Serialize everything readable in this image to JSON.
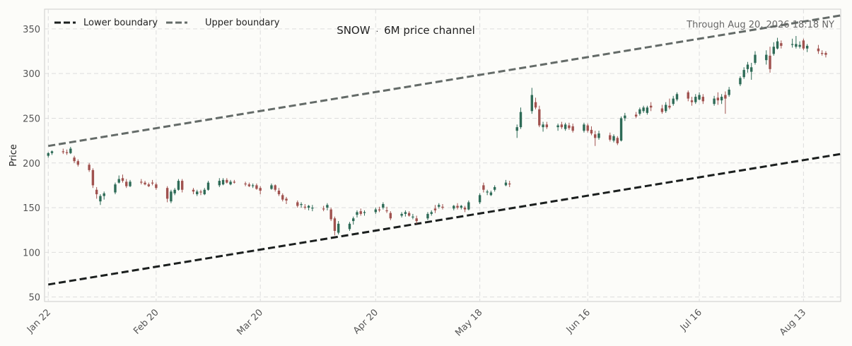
{
  "chart_data": {
    "type": "candlestick",
    "title": "SNOW · 6M price channel",
    "title_parts": {
      "ticker": "SNOW",
      "separator": "·",
      "subtitle": "6M price channel"
    },
    "note": "Through Aug 20, 2026 18:18 NY",
    "ylabel": "Price",
    "xlabel": "",
    "ylim": [
      45,
      372
    ],
    "xlim": [
      "2026-01-21",
      "2026-08-23"
    ],
    "grid": true,
    "legend_placement": "top-left",
    "y_ticks": [
      50,
      100,
      150,
      200,
      250,
      300,
      350
    ],
    "x_ticks": [
      {
        "date": "2026-01-22",
        "label": "Jan 22"
      },
      {
        "date": "2026-02-20",
        "label": "Feb 20"
      },
      {
        "date": "2026-03-20",
        "label": "Mar 20"
      },
      {
        "date": "2026-04-20",
        "label": "Apr 20"
      },
      {
        "date": "2026-05-18",
        "label": "May 18"
      },
      {
        "date": "2026-06-16",
        "label": "Jun 16"
      },
      {
        "date": "2026-07-16",
        "label": "Jul 16"
      },
      {
        "date": "2026-08-13",
        "label": "Aug 13"
      }
    ],
    "series": [
      {
        "name": "Lower boundary",
        "kind": "line",
        "style": "dashed",
        "color": "#1b1f1e",
        "points": [
          {
            "date": "2026-01-22",
            "value": 64
          },
          {
            "date": "2026-08-23",
            "value": 210
          }
        ]
      },
      {
        "name": "Upper boundary",
        "kind": "line",
        "style": "dashed",
        "color": "#646b68",
        "points": [
          {
            "date": "2026-01-22",
            "value": 219
          },
          {
            "date": "2026-08-23",
            "value": 365
          }
        ]
      }
    ],
    "colors": {
      "up": "#2e6b57",
      "down": "#a0524f",
      "background": "#fcfcf9",
      "grid": "#dddddd"
    },
    "candles": [
      [
        "2026-01-22",
        208,
        212,
        206,
        211
      ],
      [
        "2026-01-23",
        211,
        214,
        209,
        213
      ],
      [
        "2026-01-26",
        213,
        216,
        210,
        212
      ],
      [
        "2026-01-27",
        212,
        215,
        209,
        211
      ],
      [
        "2026-01-28",
        211,
        218,
        210,
        216
      ],
      [
        "2026-01-29",
        206,
        208,
        200,
        202
      ],
      [
        "2026-01-30",
        202,
        204,
        196,
        198
      ],
      [
        "2026-02-02",
        198,
        200,
        190,
        192
      ],
      [
        "2026-02-03",
        192,
        194,
        172,
        175
      ],
      [
        "2026-02-04",
        170,
        173,
        160,
        165
      ],
      [
        "2026-02-05",
        157,
        165,
        153,
        163
      ],
      [
        "2026-02-06",
        163,
        168,
        159,
        166
      ],
      [
        "2026-02-09",
        167,
        178,
        165,
        176
      ],
      [
        "2026-02-10",
        178,
        186,
        177,
        182
      ],
      [
        "2026-02-11",
        183,
        187,
        178,
        180
      ],
      [
        "2026-02-12",
        179,
        182,
        172,
        174
      ],
      [
        "2026-02-13",
        174,
        181,
        173,
        179
      ],
      [
        "2026-02-16",
        179,
        182,
        176,
        178
      ],
      [
        "2026-02-17",
        178,
        180,
        175,
        176
      ],
      [
        "2026-02-18",
        176,
        178,
        173,
        174
      ],
      [
        "2026-02-19",
        178,
        181,
        175,
        177
      ],
      [
        "2026-02-20",
        176,
        178,
        170,
        172
      ],
      [
        "2026-02-23",
        172,
        174,
        156,
        160
      ],
      [
        "2026-02-24",
        157,
        170,
        155,
        168
      ],
      [
        "2026-02-25",
        166,
        172,
        164,
        170
      ],
      [
        "2026-02-26",
        170,
        182,
        169,
        180
      ],
      [
        "2026-02-27",
        180,
        182,
        167,
        170
      ],
      [
        "2026-03-02",
        170,
        172,
        165,
        168
      ],
      [
        "2026-03-03",
        165,
        170,
        163,
        168
      ],
      [
        "2026-03-04",
        168,
        170,
        164,
        167
      ],
      [
        "2026-03-05",
        165,
        172,
        164,
        170
      ],
      [
        "2026-03-06",
        170,
        180,
        169,
        178
      ],
      [
        "2026-03-09",
        175,
        183,
        173,
        180
      ],
      [
        "2026-03-10",
        176,
        183,
        175,
        181
      ],
      [
        "2026-03-11",
        181,
        183,
        177,
        178
      ],
      [
        "2026-03-12",
        176,
        181,
        175,
        179
      ],
      [
        "2026-03-13",
        179,
        181,
        177,
        178
      ],
      [
        "2026-03-16",
        177,
        179,
        174,
        176
      ],
      [
        "2026-03-17",
        176,
        178,
        173,
        174
      ],
      [
        "2026-03-18",
        175,
        177,
        172,
        175
      ],
      [
        "2026-03-19",
        175,
        177,
        170,
        171
      ],
      [
        "2026-03-20",
        172,
        174,
        165,
        169
      ],
      [
        "2026-03-23",
        171,
        177,
        170,
        175
      ],
      [
        "2026-03-24",
        175,
        176,
        168,
        170
      ],
      [
        "2026-03-25",
        169,
        172,
        163,
        165
      ],
      [
        "2026-03-26",
        164,
        166,
        157,
        159
      ],
      [
        "2026-03-27",
        160,
        162,
        154,
        158
      ],
      [
        "2026-03-30",
        156,
        158,
        150,
        152
      ],
      [
        "2026-03-31",
        153,
        156,
        150,
        154
      ],
      [
        "2026-04-01",
        151,
        154,
        148,
        150
      ],
      [
        "2026-04-02",
        150,
        153,
        147,
        152
      ],
      [
        "2026-04-03",
        150,
        153,
        146,
        150
      ],
      [
        "2026-04-06",
        149,
        152,
        146,
        148
      ],
      [
        "2026-04-07",
        150,
        155,
        147,
        153
      ],
      [
        "2026-04-08",
        148,
        150,
        135,
        137
      ],
      [
        "2026-04-09",
        138,
        140,
        119,
        124
      ],
      [
        "2026-04-10",
        122,
        135,
        120,
        132
      ],
      [
        "2026-04-13",
        126,
        134,
        124,
        132
      ],
      [
        "2026-04-14",
        135,
        140,
        131,
        138
      ],
      [
        "2026-04-15",
        142,
        147,
        139,
        145
      ],
      [
        "2026-04-16",
        146,
        149,
        141,
        143
      ],
      [
        "2026-04-17",
        144,
        147,
        141,
        145
      ],
      [
        "2026-04-20",
        145,
        150,
        143,
        148
      ],
      [
        "2026-04-21",
        148,
        151,
        145,
        147
      ],
      [
        "2026-04-22",
        150,
        156,
        148,
        154
      ],
      [
        "2026-04-23",
        147,
        151,
        144,
        146
      ],
      [
        "2026-04-24",
        144,
        146,
        136,
        138
      ],
      [
        "2026-04-27",
        141,
        145,
        139,
        143
      ],
      [
        "2026-04-28",
        143,
        147,
        140,
        145
      ],
      [
        "2026-04-29",
        144,
        146,
        140,
        141
      ],
      [
        "2026-04-30",
        139,
        143,
        137,
        140
      ],
      [
        "2026-05-01",
        138,
        141,
        132,
        135
      ],
      [
        "2026-05-04",
        138,
        145,
        136,
        143
      ],
      [
        "2026-05-05",
        143,
        147,
        141,
        145
      ],
      [
        "2026-05-06",
        149,
        153,
        144,
        147
      ],
      [
        "2026-05-07",
        151,
        155,
        149,
        153
      ],
      [
        "2026-05-08",
        151,
        154,
        148,
        150
      ],
      [
        "2026-05-11",
        149,
        153,
        147,
        152
      ],
      [
        "2026-05-12",
        152,
        155,
        148,
        150
      ],
      [
        "2026-05-13",
        150,
        153,
        148,
        152
      ],
      [
        "2026-05-14",
        150,
        152,
        145,
        148
      ],
      [
        "2026-05-15",
        148,
        158,
        147,
        156
      ],
      [
        "2026-05-18",
        156,
        166,
        154,
        164
      ],
      [
        "2026-05-19",
        175,
        178,
        167,
        170
      ],
      [
        "2026-05-20",
        167,
        170,
        164,
        168
      ],
      [
        "2026-05-21",
        164,
        169,
        163,
        167
      ],
      [
        "2026-05-22",
        170,
        175,
        168,
        173
      ],
      [
        "2026-05-25",
        175,
        181,
        174,
        178
      ],
      [
        "2026-05-26",
        177,
        180,
        173,
        176
      ],
      [
        "2026-05-28",
        236,
        243,
        228,
        240
      ],
      [
        "2026-05-29",
        240,
        262,
        238,
        257
      ],
      [
        "2026-06-01",
        258,
        284,
        255,
        276
      ],
      [
        "2026-06-02",
        268,
        273,
        260,
        262
      ],
      [
        "2026-06-03",
        260,
        264,
        240,
        242
      ],
      [
        "2026-06-04",
        240,
        246,
        235,
        243
      ],
      [
        "2026-06-05",
        243,
        246,
        238,
        240
      ],
      [
        "2026-06-08",
        240,
        244,
        236,
        242
      ],
      [
        "2026-06-09",
        243,
        246,
        238,
        240
      ],
      [
        "2026-06-10",
        238,
        245,
        236,
        243
      ],
      [
        "2026-06-11",
        242,
        245,
        237,
        239
      ],
      [
        "2026-06-12",
        241,
        244,
        234,
        236
      ],
      [
        "2026-06-15",
        236,
        245,
        234,
        243
      ],
      [
        "2026-06-16",
        242,
        244,
        234,
        236
      ],
      [
        "2026-06-17",
        237,
        241,
        231,
        233
      ],
      [
        "2026-06-18",
        232,
        236,
        219,
        228
      ],
      [
        "2026-06-19",
        228,
        236,
        226,
        233
      ],
      [
        "2026-06-22",
        231,
        234,
        224,
        226
      ],
      [
        "2026-06-23",
        225,
        232,
        223,
        230
      ],
      [
        "2026-06-24",
        228,
        230,
        220,
        222
      ],
      [
        "2026-06-25",
        225,
        252,
        224,
        250
      ],
      [
        "2026-06-26",
        250,
        256,
        247,
        253
      ],
      [
        "2026-06-29",
        254,
        257,
        250,
        252
      ],
      [
        "2026-06-30",
        255,
        262,
        253,
        260
      ],
      [
        "2026-07-01",
        258,
        264,
        256,
        262
      ],
      [
        "2026-07-02",
        256,
        264,
        254,
        262
      ],
      [
        "2026-07-03",
        264,
        268,
        258,
        262
      ],
      [
        "2026-07-06",
        261,
        265,
        255,
        257
      ],
      [
        "2026-07-07",
        258,
        268,
        256,
        265
      ],
      [
        "2026-07-08",
        264,
        272,
        260,
        262
      ],
      [
        "2026-07-09",
        266,
        275,
        264,
        272
      ],
      [
        "2026-07-10",
        271,
        279,
        269,
        277
      ],
      [
        "2026-07-13",
        279,
        281,
        269,
        272
      ],
      [
        "2026-07-14",
        270,
        274,
        264,
        268
      ],
      [
        "2026-07-15",
        268,
        277,
        266,
        274
      ],
      [
        "2026-07-16",
        271,
        279,
        270,
        276
      ],
      [
        "2026-07-17",
        274,
        277,
        266,
        269
      ],
      [
        "2026-07-20",
        266,
        275,
        264,
        272
      ],
      [
        "2026-07-21",
        273,
        279,
        265,
        270
      ],
      [
        "2026-07-22",
        270,
        277,
        266,
        274
      ],
      [
        "2026-07-23",
        276,
        280,
        255,
        272
      ],
      [
        "2026-07-24",
        276,
        285,
        274,
        282
      ],
      [
        "2026-07-27",
        288,
        297,
        286,
        295
      ],
      [
        "2026-07-28",
        296,
        307,
        294,
        304
      ],
      [
        "2026-07-29",
        305,
        313,
        301,
        310
      ],
      [
        "2026-07-30",
        302,
        312,
        293,
        307
      ],
      [
        "2026-07-31",
        312,
        325,
        310,
        321
      ],
      [
        "2026-08-03",
        315,
        326,
        310,
        321
      ],
      [
        "2026-08-04",
        320,
        330,
        301,
        305
      ],
      [
        "2026-08-05",
        322,
        335,
        320,
        330
      ],
      [
        "2026-08-06",
        328,
        340,
        327,
        336
      ],
      [
        "2026-08-07",
        334,
        337,
        328,
        331
      ],
      [
        "2026-08-10",
        332,
        339,
        329,
        333
      ],
      [
        "2026-08-11",
        330,
        342,
        328,
        333
      ],
      [
        "2026-08-12",
        330,
        336,
        328,
        332
      ],
      [
        "2026-08-13",
        337,
        339,
        326,
        328
      ],
      [
        "2026-08-14",
        328,
        333,
        324,
        331
      ],
      [
        "2026-08-17",
        328,
        332,
        322,
        325
      ],
      [
        "2026-08-18",
        323,
        326,
        320,
        322
      ],
      [
        "2026-08-19",
        323,
        325,
        318,
        321
      ]
    ]
  }
}
